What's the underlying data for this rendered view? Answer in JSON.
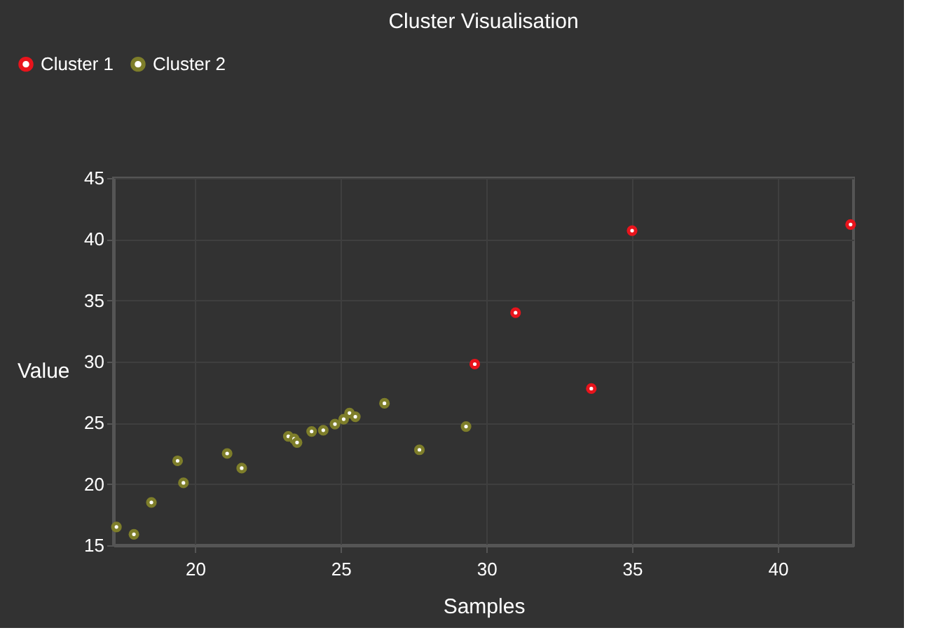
{
  "chart_data": {
    "type": "scatter",
    "title": "Cluster Visualisation",
    "xlabel": "Samples",
    "ylabel": "Value",
    "xlim": [
      17.2,
      42.6
    ],
    "ylim": [
      15,
      45
    ],
    "xticks": [
      20,
      25,
      30,
      35,
      40
    ],
    "yticks": [
      15,
      20,
      25,
      30,
      35,
      40,
      45
    ],
    "grid": true,
    "legend": "top left",
    "marker": "circle",
    "series": [
      {
        "name": "Cluster 1",
        "color": "#e8141c",
        "x": [
          29.6,
          31.0,
          33.6,
          35.0,
          42.5
        ],
        "values": [
          29.8,
          34.0,
          27.8,
          40.7,
          41.2
        ]
      },
      {
        "name": "Cluster 2",
        "color": "#7e7e2a",
        "x": [
          17.3,
          17.9,
          18.5,
          19.4,
          19.6,
          21.1,
          21.6,
          23.2,
          23.4,
          23.5,
          24.0,
          24.4,
          24.8,
          25.1,
          25.3,
          25.5,
          26.5,
          27.7,
          29.3
        ],
        "values": [
          16.5,
          15.9,
          18.5,
          21.9,
          20.1,
          22.5,
          21.3,
          23.9,
          23.7,
          23.4,
          24.3,
          24.4,
          24.9,
          25.3,
          25.8,
          25.5,
          26.6,
          22.8,
          24.7
        ]
      }
    ]
  }
}
